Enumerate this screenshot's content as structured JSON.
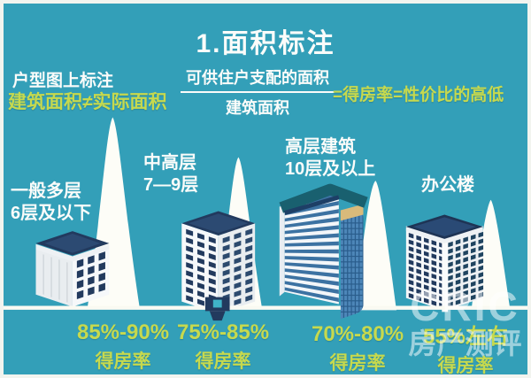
{
  "title": "1.面积标注",
  "colors": {
    "background": "#339fb8",
    "highlight_yellow": "#c6d94e",
    "text_white": "#ffffff"
  },
  "notes": {
    "floorplan_line1": "户型图上标注",
    "floorplan_line2": "建筑面积≠实际面积",
    "formula_numerator": "可供住户支配的面积",
    "formula_denominator": "建筑面积",
    "formula_result": "=得房率=性价比的高低"
  },
  "buildings": [
    {
      "type_line1": "一般多层",
      "type_line2": "6层及以下",
      "rate": "85%-90%",
      "rate_label": "得房率"
    },
    {
      "type_line1": "中高层",
      "type_line2": "7—9层",
      "rate": "75%-85%",
      "rate_label": "得房率"
    },
    {
      "type_line1": "高层建筑",
      "type_line2": "10层及以上",
      "rate": "70%-80%",
      "rate_label": "得房率"
    },
    {
      "type_line1": "办公楼",
      "type_line2": "",
      "rate": "55%左右",
      "rate_label": "得房率"
    }
  ],
  "watermark": {
    "brand": "CRIC",
    "name": "房产测评"
  }
}
